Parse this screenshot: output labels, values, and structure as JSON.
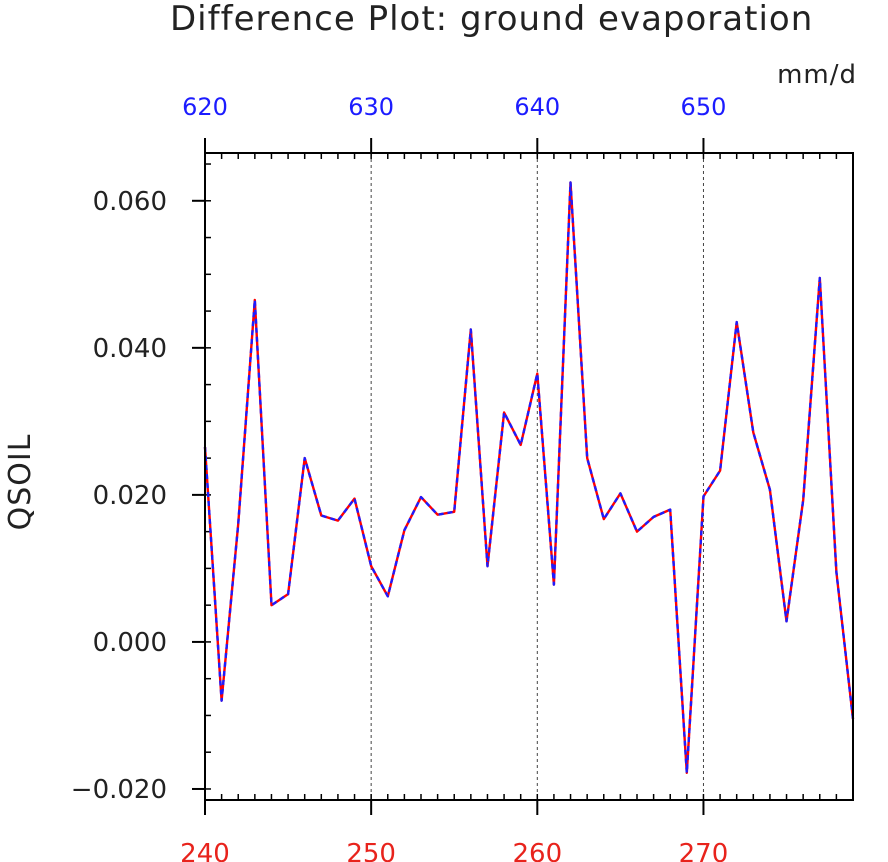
{
  "colors": {
    "bottom_axis": "#e8231c",
    "top_axis": "#1c1cff",
    "series_a": "#ff0000",
    "series_b": "#1c1cff",
    "frame": "#000000",
    "text": "#222222"
  },
  "chart_data": {
    "type": "line",
    "title": "Difference Plot: ground evaporation",
    "units": "mm/d",
    "ylabel": "QSOIL",
    "xlim": [
      240,
      279
    ],
    "ylim": [
      -0.0215,
      0.0665
    ],
    "top_xlim": [
      620,
      659
    ],
    "x_ticks_bottom": [
      "240",
      "250",
      "260",
      "270"
    ],
    "x_ticks_top": [
      "620",
      "630",
      "640",
      "650"
    ],
    "y_ticks": [
      "0.060",
      "0.040",
      "0.020",
      "0.000",
      "−0.020"
    ],
    "y_tick_values": [
      0.06,
      0.04,
      0.02,
      0.0,
      -0.02
    ],
    "grid": "dashed vertical lines at 250, 260, 270",
    "x": [
      240,
      241,
      242,
      243,
      244,
      245,
      246,
      247,
      248,
      249,
      250,
      251,
      252,
      253,
      254,
      255,
      256,
      257,
      258,
      259,
      260,
      261,
      262,
      263,
      264,
      265,
      266,
      267,
      268,
      269,
      270,
      271,
      272,
      273,
      274,
      275,
      276,
      277,
      278,
      279
    ],
    "series": [
      {
        "values": [
          0.0265,
          -0.008,
          0.016,
          0.0465,
          0.005,
          0.0065,
          0.025,
          0.0172,
          0.0165,
          0.0195,
          0.0103,
          0.0062,
          0.0152,
          0.0197,
          0.0173,
          0.0177,
          0.0425,
          0.0103,
          0.0312,
          0.0268,
          0.0365,
          0.0078,
          0.0625,
          0.025,
          0.0167,
          0.0202,
          0.015,
          0.017,
          0.018,
          -0.0178,
          0.0198,
          0.0233,
          0.0435,
          0.0285,
          0.0207,
          0.0028,
          0.0193,
          0.0495,
          0.0095,
          -0.0105
        ]
      },
      {
        "values": [
          0.0265,
          -0.008,
          0.016,
          0.0465,
          0.005,
          0.0065,
          0.025,
          0.0172,
          0.0165,
          0.0195,
          0.0103,
          0.0062,
          0.0152,
          0.0197,
          0.0173,
          0.0177,
          0.0425,
          0.0103,
          0.0312,
          0.0268,
          0.0365,
          0.0078,
          0.0625,
          0.025,
          0.0167,
          0.0202,
          0.015,
          0.017,
          0.018,
          -0.0178,
          0.0198,
          0.0233,
          0.0435,
          0.0285,
          0.0207,
          0.0028,
          0.0193,
          0.0495,
          0.0095,
          -0.0105
        ]
      }
    ]
  }
}
